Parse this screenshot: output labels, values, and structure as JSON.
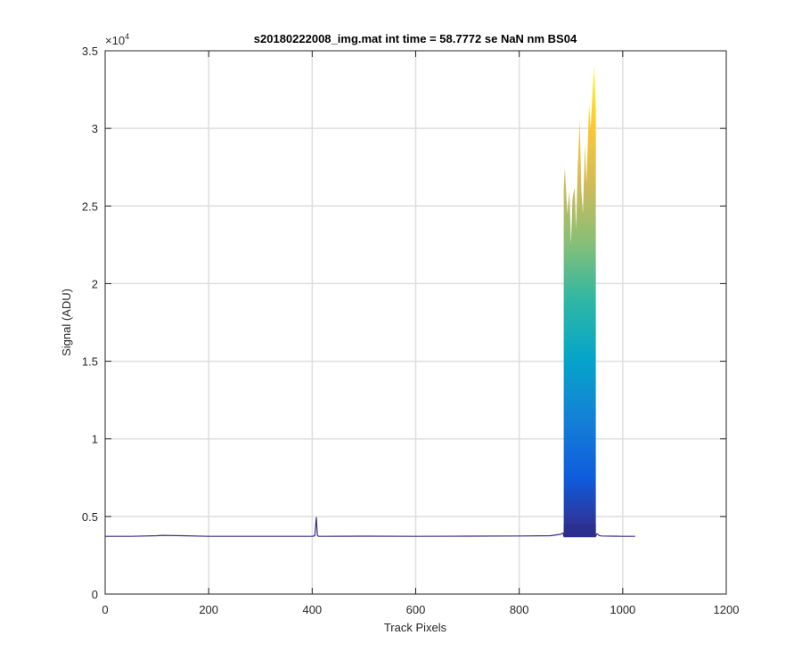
{
  "chart_data": {
    "type": "area",
    "title": "s20180222008_img.mat int time = 58.7772 se  NaN nm BS04",
    "xlabel": "Track Pixels",
    "ylabel": "Signal (ADU)",
    "xlim": [
      0,
      1200
    ],
    "ylim": [
      0,
      35000
    ],
    "xticks": [
      0,
      200,
      400,
      600,
      800,
      1000,
      1200
    ],
    "yticks": [
      0,
      5000,
      10000,
      15000,
      20000,
      25000,
      30000,
      35000
    ],
    "xtick_labels": [
      "0",
      "200",
      "400",
      "600",
      "800",
      "1000",
      "1200"
    ],
    "ytick_labels": [
      "0",
      "0.5",
      "1",
      "1.5",
      "2",
      "2.5",
      "3",
      "3.5"
    ],
    "y_exponent_label": "×10",
    "y_exponent_power": "4",
    "grid": true,
    "colormap": [
      "#352a87",
      "#0f5cdd",
      "#1481d6",
      "#06a4ca",
      "#2eb7a4",
      "#87bf77",
      "#d1bb59",
      "#fec832",
      "#f9fb0e"
    ],
    "baseline": 3720,
    "series": [
      {
        "x": [
          0,
          50,
          100,
          110,
          150,
          200,
          250,
          300,
          350,
          400,
          405,
          408,
          410,
          412,
          420,
          500,
          600,
          700,
          800,
          860,
          880,
          885
        ],
        "y": [
          3720,
          3720,
          3760,
          3780,
          3760,
          3720,
          3720,
          3720,
          3720,
          3720,
          3750,
          4950,
          3800,
          3720,
          3720,
          3730,
          3720,
          3730,
          3740,
          3760,
          3850,
          3950
        ]
      },
      {
        "x": [
          886,
          888,
          893,
          897,
          900,
          903,
          907,
          910,
          913,
          917,
          920,
          923,
          927,
          930,
          935,
          938,
          942,
          945,
          948
        ],
        "y": [
          26000,
          27500,
          24500,
          26000,
          22500,
          25500,
          26200,
          23500,
          27500,
          30500,
          26000,
          24500,
          29000,
          26500,
          31500,
          30000,
          32500,
          34000,
          31000
        ]
      },
      {
        "x": [
          950,
          955,
          960,
          980,
          1000,
          1024
        ],
        "y": [
          3900,
          3760,
          3740,
          3730,
          3720,
          3720
        ]
      }
    ]
  }
}
